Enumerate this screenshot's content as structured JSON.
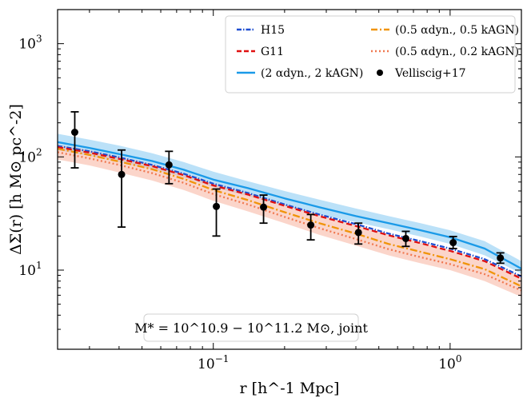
{
  "chart_data": {
    "type": "line",
    "title": "",
    "xlabel": "r [h^-1 Mpc]",
    "ylabel": "ΔΣ(r) [h M⊙ pc^-2]",
    "xscale": "log",
    "yscale": "log",
    "xlim": [
      0.022,
      2.0
    ],
    "ylim": [
      2.0,
      2000
    ],
    "xticks": [
      {
        "value": 0.1,
        "label": "10",
        "exp": "−1"
      },
      {
        "value": 1.0,
        "label": "10",
        "exp": "0"
      }
    ],
    "yticks": [
      {
        "value": 10,
        "label": "10",
        "exp": "1"
      },
      {
        "value": 100,
        "label": "10",
        "exp": "2"
      },
      {
        "value": 1000,
        "label": "10",
        "exp": "3"
      }
    ],
    "x": [
      0.022,
      0.03,
      0.04,
      0.055,
      0.075,
      0.1,
      0.14,
      0.2,
      0.28,
      0.4,
      0.55,
      0.75,
      1.0,
      1.4,
      2.0
    ],
    "series": [
      {
        "name": "H15",
        "color": "#1f4fd1",
        "style": "dotdash",
        "values": [
          125,
          112,
          99,
          85,
          71,
          58,
          48,
          38,
          31,
          25.5,
          21,
          18,
          15.5,
          12.5,
          8.8
        ]
      },
      {
        "name": "G11",
        "color": "#e01010",
        "style": "dashed",
        "values": [
          122,
          109,
          96,
          83,
          69,
          56,
          46.5,
          37,
          30,
          24.5,
          20.3,
          17.3,
          14.8,
          12,
          8.4
        ]
      },
      {
        "name": "(2 αdyn., 2 kAGN)",
        "color": "#1a9ae8",
        "style": "solid",
        "band_lower": [
          115,
          102,
          90,
          78,
          66,
          54,
          45,
          37,
          31,
          26.5,
          23,
          19.8,
          17,
          13.5,
          9.3
        ],
        "band_upper": [
          160,
          142,
          126,
          108,
          90,
          74,
          61,
          50,
          42,
          35,
          30,
          26,
          22.5,
          18,
          12
        ],
        "values": [
          135,
          120,
          106,
          92,
          77,
          63,
          53,
          43,
          36,
          30,
          26,
          22.5,
          19.5,
          15.5,
          10.3
        ]
      },
      {
        "name": "(0.5 αdyn., 0.5 kAGN)",
        "color": "#f0940a",
        "style": "dashdot",
        "values": [
          118,
          104,
          91,
          78,
          64,
          51,
          41.5,
          32.5,
          26,
          21,
          17,
          14.5,
          12.5,
          10.2,
          7.2
        ]
      },
      {
        "name": "(0.5 αdyn., 0.2 kAGN)",
        "color": "#f07850",
        "style": "dotted",
        "band_lower": [
          95,
          84,
          73,
          62,
          51,
          41,
          33,
          26,
          20.5,
          16.5,
          13.5,
          11.5,
          10,
          8,
          5.8
        ],
        "band_upper": [
          128,
          114,
          100,
          86,
          71,
          58,
          47.5,
          38,
          31,
          25,
          20.5,
          17.5,
          15,
          12,
          8.8
        ],
        "values": [
          110,
          97,
          85,
          72,
          59,
          47,
          38,
          29.5,
          23.5,
          18.8,
          15.3,
          13,
          11.3,
          9.2,
          6.6
        ]
      }
    ],
    "observations": {
      "name": "Velliscig+17",
      "color": "#000000",
      "points": [
        {
          "x": 0.026,
          "y": 165,
          "yerr_lo": 80,
          "yerr_hi": 250
        },
        {
          "x": 0.041,
          "y": 70,
          "yerr_lo": 24,
          "yerr_hi": 115
        },
        {
          "x": 0.065,
          "y": 85,
          "yerr_lo": 58,
          "yerr_hi": 112
        },
        {
          "x": 0.103,
          "y": 36.5,
          "yerr_lo": 20,
          "yerr_hi": 52
        },
        {
          "x": 0.163,
          "y": 36,
          "yerr_lo": 26,
          "yerr_hi": 46
        },
        {
          "x": 0.258,
          "y": 25,
          "yerr_lo": 18.5,
          "yerr_hi": 31
        },
        {
          "x": 0.41,
          "y": 21.5,
          "yerr_lo": 17,
          "yerr_hi": 26
        },
        {
          "x": 0.65,
          "y": 19,
          "yerr_lo": 16.2,
          "yerr_hi": 22
        },
        {
          "x": 1.03,
          "y": 17.5,
          "yerr_lo": 15.5,
          "yerr_hi": 19.8
        },
        {
          "x": 1.63,
          "y": 12.8,
          "yerr_lo": 11.5,
          "yerr_hi": 14.2
        }
      ]
    },
    "legend": {
      "position": "top-right",
      "entries": [
        {
          "label": "H15",
          "series": 0
        },
        {
          "label": "G11",
          "series": 1
        },
        {
          "label": "(2 αdyn., 2 kAGN)",
          "series": 2
        },
        {
          "label": "(0.5 αdyn., 0.5 kAGN)",
          "series": 3
        },
        {
          "label": "(0.5 αdyn., 0.2 kAGN)",
          "series": 4
        },
        {
          "label": "Velliscig+17",
          "series": "observations"
        }
      ]
    },
    "annotation": {
      "text": "M* = 10^10.9 − 10^11.2 M⊙, joint",
      "position": "bottom-center"
    }
  }
}
